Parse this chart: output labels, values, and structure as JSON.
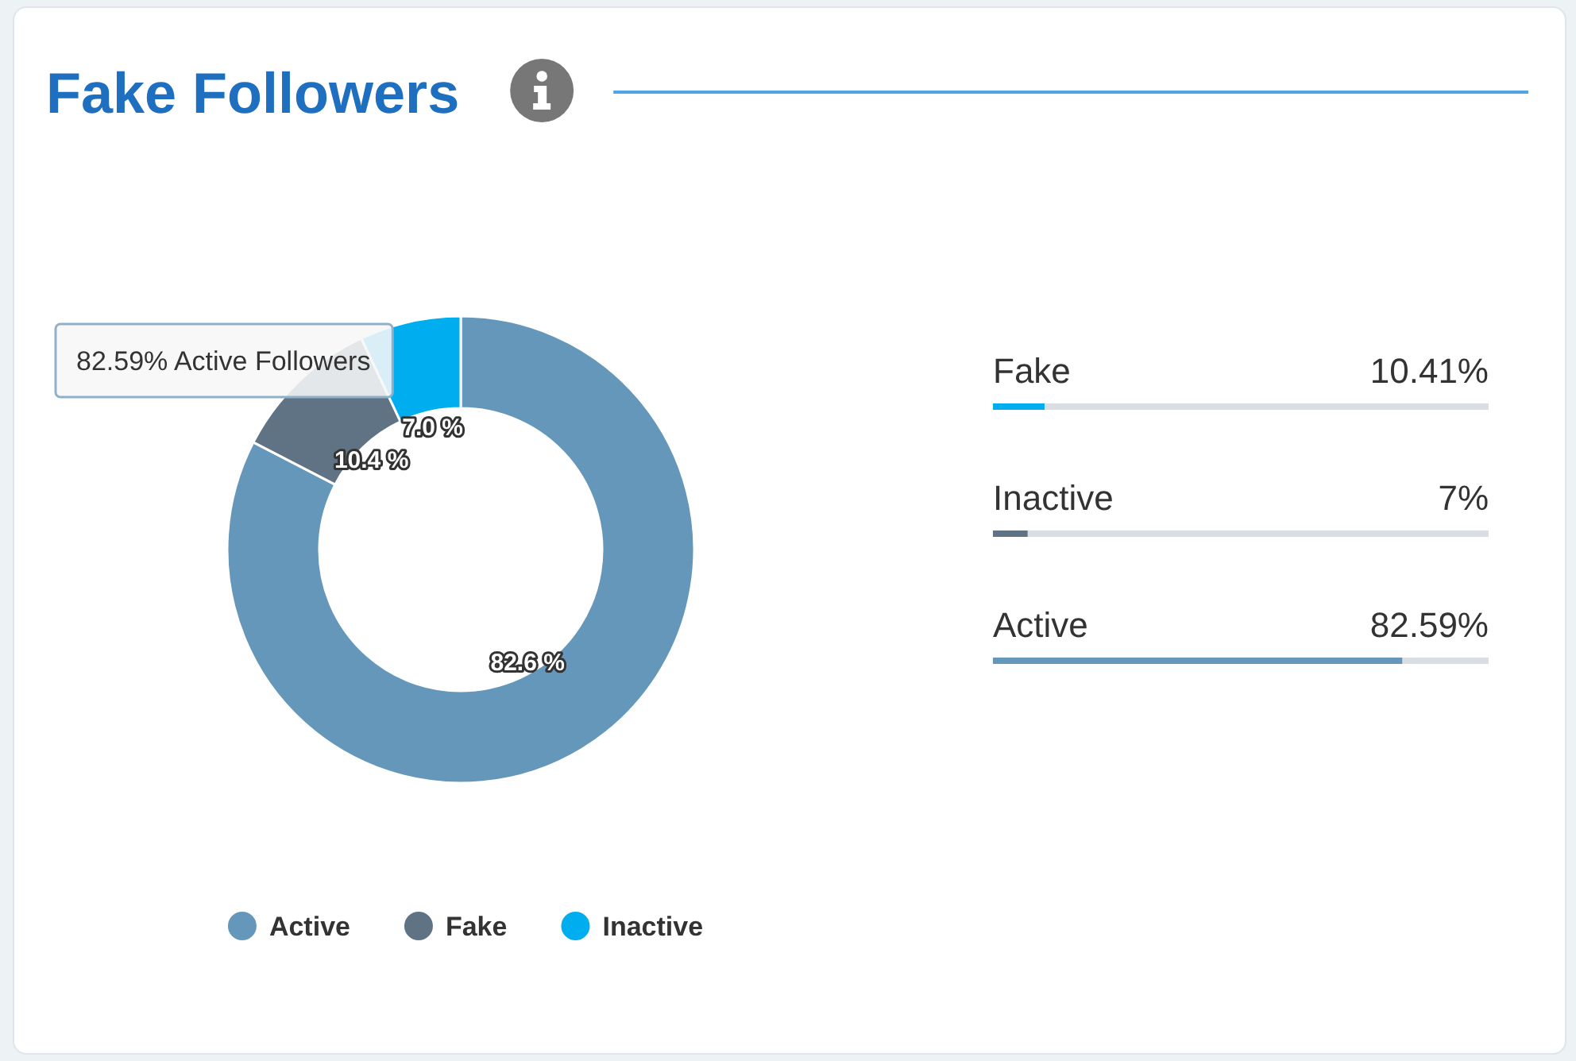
{
  "chart_data": [
    {
      "type": "donut",
      "title": "Fake Followers",
      "categories": [
        "Active",
        "Fake",
        "Inactive"
      ],
      "values": [
        82.6,
        10.4,
        7.0
      ],
      "colors": [
        "#6497b9",
        "#5f7384",
        "#00aeef"
      ],
      "value_labels": [
        "82.6 %",
        "10.4 %",
        "7.0 %"
      ],
      "legend": "bottom",
      "annotations": [
        "82.59% Active Followers"
      ]
    },
    {
      "type": "bar",
      "orientation": "horizontal",
      "categories": [
        "Fake",
        "Inactive",
        "Active"
      ],
      "values": [
        10.41,
        7,
        82.59
      ],
      "colors": [
        "#00aeef",
        "#5f7384",
        "#6497b9"
      ],
      "xlim": [
        0,
        100
      ],
      "value_labels": [
        "10.41%",
        "7%",
        "82.59%"
      ],
      "tick_labels": "y"
    }
  ]
}
